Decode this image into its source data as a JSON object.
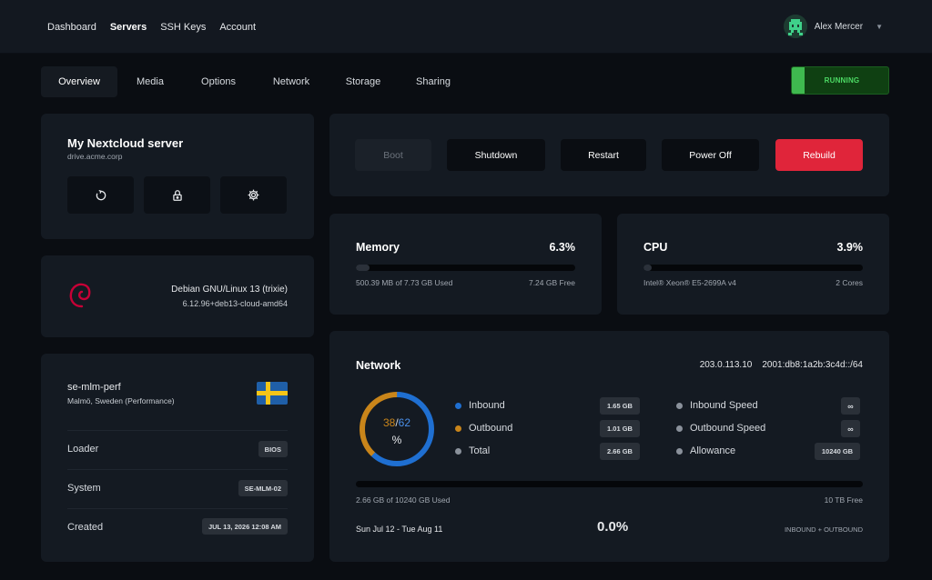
{
  "topnav": {
    "items": [
      {
        "label": "Dashboard",
        "active": false
      },
      {
        "label": "Servers",
        "active": true
      },
      {
        "label": "SSH Keys",
        "active": false
      },
      {
        "label": "Account",
        "active": false
      }
    ],
    "user_name": "Alex Mercer"
  },
  "tabs": [
    {
      "label": "Overview",
      "active": true
    },
    {
      "label": "Media"
    },
    {
      "label": "Options"
    },
    {
      "label": "Network"
    },
    {
      "label": "Storage"
    },
    {
      "label": "Sharing"
    }
  ],
  "status": {
    "label": "RUNNING",
    "color": "#4cd964"
  },
  "server": {
    "name": "My Nextcloud server",
    "hostname": "drive.acme.corp",
    "icons": [
      "refresh-icon",
      "lock-icon",
      "gear-icon"
    ]
  },
  "os": {
    "name": "Debian GNU/Linux 13 (trixie)",
    "kernel": "6.12.96+deb13-cloud-amd64",
    "logo_color": "#c70036"
  },
  "location": {
    "id": "se-mlm-perf",
    "place": "Malmö, Sweden (Performance)",
    "flag": "sweden-flag",
    "rows": [
      {
        "label": "Loader",
        "value": "BIOS"
      },
      {
        "label": "System",
        "value": "SE-MLM-02"
      },
      {
        "label": "Created",
        "value": "JUL 13, 2026 12:08 AM"
      }
    ]
  },
  "actions": [
    {
      "label": "Boot",
      "style": "disabled"
    },
    {
      "label": "Shutdown",
      "style": "dark"
    },
    {
      "label": "Restart",
      "style": "dark"
    },
    {
      "label": "Power Off",
      "style": "dark"
    },
    {
      "label": "Rebuild",
      "style": "danger",
      "color": "#e0253a"
    }
  ],
  "memory": {
    "title": "Memory",
    "percent_label": "6.3%",
    "fraction": 0.063,
    "used": "500.39 MB of 7.73 GB Used",
    "free": "7.24 GB Free"
  },
  "cpu": {
    "title": "CPU",
    "percent_label": "3.9%",
    "fraction": 0.039,
    "model": "Intel® Xeon® E5-2699A v4",
    "cores": "2 Cores"
  },
  "network": {
    "title": "Network",
    "ipv4": "203.0.113.10",
    "ipv6": "2001:db8:1a2b:3c4d::/64",
    "donut": {
      "inbound_pct": 62,
      "outbound_pct": 38,
      "left_label": "38",
      "sep": "/",
      "right_label": "62",
      "unit": "%",
      "inbound_color": "#1f6fd1",
      "outbound_color": "#c9851a"
    },
    "legend": [
      {
        "label": "Inbound",
        "value": "1.65 GB",
        "color": "#1f6fd1"
      },
      {
        "label": "Outbound",
        "value": "1.01 GB",
        "color": "#c9851a"
      },
      {
        "label": "Total",
        "value": "2.66 GB",
        "color": "#8a919b"
      }
    ],
    "speeds": [
      {
        "label": "Inbound Speed",
        "value": "∞"
      },
      {
        "label": "Outbound Speed",
        "value": "∞"
      },
      {
        "label": "Allowance",
        "value": "10240 GB"
      }
    ],
    "usage_fraction": 0.0,
    "used_text": "2.66 GB of 10240 GB Used",
    "free_text": "10 TB Free",
    "period": "Sun Jul 12 - Tue Aug 11",
    "usage_pct": "0.0%",
    "mode": "INBOUND + OUTBOUND"
  }
}
